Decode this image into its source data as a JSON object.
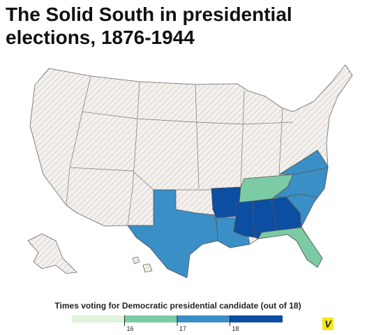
{
  "title": "The Solid South in presidential elections, 1876-1944",
  "legend": {
    "title": "Times voting for Democratic presidential candidate (out of 18)",
    "ticks": [
      16,
      17,
      18
    ],
    "colors": [
      "#e0f3db",
      "#7bcca4",
      "#3a8fc6",
      "#0b4ea2"
    ]
  },
  "states": {
    "values": [
      17,
      18,
      17,
      18,
      18,
      18,
      16,
      17,
      17,
      16,
      17
    ]
  },
  "logo": "V"
}
